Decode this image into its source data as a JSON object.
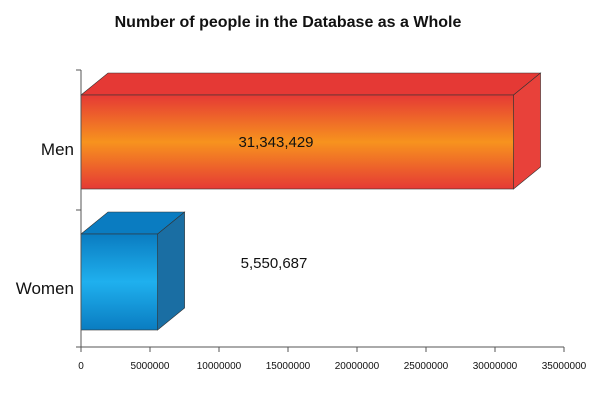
{
  "chart_data": {
    "type": "bar",
    "orientation": "horizontal",
    "style": "3d",
    "title": "Number of people in the Database as a Whole",
    "categories": [
      "Men",
      "Women"
    ],
    "values": [
      31343429,
      5550687
    ],
    "value_labels": [
      "31,343,429",
      "5,550,687"
    ],
    "xlim": [
      0,
      35000000
    ],
    "x_ticks": [
      0,
      5000000,
      10000000,
      15000000,
      20000000,
      25000000,
      30000000,
      35000000
    ],
    "x_tick_labels": [
      "0",
      "5000000",
      "10000000",
      "15000000",
      "20000000",
      "25000000",
      "30000000",
      "35000000"
    ],
    "xlabel": "",
    "ylabel": "",
    "grid": false,
    "legend": "none",
    "colors": {
      "men_top": "#e53935",
      "men_mid": "#f7931e",
      "men_side": "#e8413a",
      "women_top": "#0a7cc1",
      "women_mid": "#1fb0ee",
      "women_side": "#1a6ea3"
    }
  }
}
